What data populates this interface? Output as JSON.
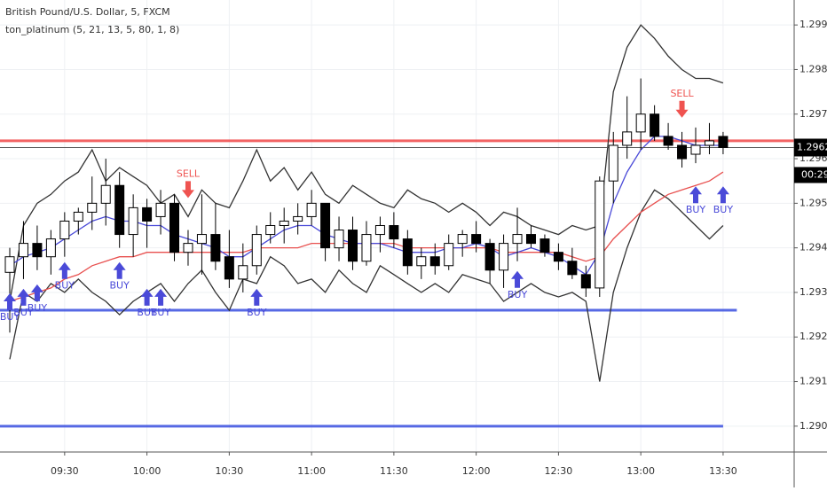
{
  "chart_data": {
    "type": "candlestick",
    "title": "British Pound/U.S. Dollar, 5, FXCM",
    "subtitle": "ton_platinum (5, 21, 13, 5, 80, 1, 8)",
    "categories": [
      null,
      null,
      null,
      null,
      "09:30",
      null,
      null,
      null,
      null,
      null,
      "10:00",
      null,
      null,
      null,
      null,
      null,
      "10:30",
      null,
      null,
      null,
      null,
      null,
      "11:00",
      null,
      null,
      null,
      null,
      null,
      "11:30",
      null,
      null,
      null,
      null,
      null,
      "12:00",
      null,
      null,
      null,
      null,
      null,
      "12:30",
      null,
      null,
      null,
      null,
      null,
      "13:00",
      null,
      null,
      null,
      null,
      null,
      "13:30"
    ],
    "open": [
      1.29345,
      1.2938,
      1.2941,
      1.2938,
      1.2942,
      1.2946,
      1.2948,
      1.295,
      1.2954,
      1.2943,
      1.2949,
      1.2947,
      1.295,
      1.2939,
      1.2941,
      1.2943,
      1.2938,
      1.2933,
      1.2936,
      1.2943,
      1.2945,
      1.2946,
      1.2947,
      1.295,
      1.294,
      1.2944,
      1.2937,
      1.2943,
      1.2945,
      1.2942,
      1.2936,
      1.2938,
      1.2936,
      1.2941,
      1.2943,
      1.2941,
      1.2935,
      1.2941,
      1.2943,
      1.2942,
      1.2939,
      1.2937,
      1.2934,
      1.2931,
      1.2955,
      1.2963,
      1.2966,
      1.297,
      1.2965,
      1.2963,
      1.2961,
      1.2963,
      1.2965
    ],
    "high": [
      1.294,
      1.2946,
      1.2945,
      1.2944,
      1.2948,
      1.2949,
      1.2956,
      1.296,
      1.2957,
      1.2952,
      1.2951,
      1.2953,
      1.2952,
      1.2944,
      1.2952,
      1.295,
      1.2944,
      1.2941,
      1.2945,
      1.2948,
      1.2949,
      1.295,
      1.2953,
      1.295,
      1.2947,
      1.2947,
      1.2946,
      1.2947,
      1.2948,
      1.2944,
      1.294,
      1.2941,
      1.2943,
      1.2944,
      1.2946,
      1.2942,
      1.2943,
      1.2949,
      1.2945,
      1.2943,
      1.2941,
      1.294,
      1.2936,
      1.2956,
      1.2966,
      1.2974,
      1.2978,
      1.2972,
      1.2968,
      1.2966,
      1.2967,
      1.2968,
      1.2966
    ],
    "low": [
      1.2921,
      1.2933,
      1.2935,
      1.2934,
      1.2938,
      1.2943,
      1.2944,
      1.2945,
      1.294,
      1.2938,
      1.294,
      1.2943,
      1.2937,
      1.2936,
      1.2934,
      1.2935,
      1.2931,
      1.293,
      1.2934,
      1.2941,
      1.2941,
      1.2943,
      1.2945,
      1.2937,
      1.2937,
      1.2935,
      1.2936,
      1.2939,
      1.294,
      1.2934,
      1.2933,
      1.2934,
      1.2935,
      1.2938,
      1.2939,
      1.2932,
      1.2931,
      1.2937,
      1.294,
      1.2938,
      1.2935,
      1.2933,
      1.2929,
      1.2929,
      1.295,
      1.296,
      1.2962,
      1.2964,
      1.2962,
      1.2958,
      1.2959,
      1.2961,
      1.2961
    ],
    "close": [
      1.2938,
      1.2941,
      1.2938,
      1.2942,
      1.2946,
      1.2948,
      1.295,
      1.2954,
      1.2943,
      1.2949,
      1.2946,
      1.295,
      1.2939,
      1.2941,
      1.2943,
      1.2937,
      1.2933,
      1.2936,
      1.2943,
      1.2945,
      1.2946,
      1.2947,
      1.295,
      1.294,
      1.2944,
      1.2937,
      1.2943,
      1.2945,
      1.2942,
      1.2936,
      1.2938,
      1.2936,
      1.2941,
      1.2943,
      1.2941,
      1.2935,
      1.2941,
      1.2943,
      1.2941,
      1.2939,
      1.2937,
      1.2934,
      1.2931,
      1.2955,
      1.2963,
      1.2966,
      1.297,
      1.2965,
      1.2963,
      1.296,
      1.2963,
      1.2964,
      1.29625
    ],
    "series": [
      {
        "color": "#333333",
        "values": [
          1.2928,
          1.2945,
          1.295,
          1.2952,
          1.2955,
          1.2957,
          1.2962,
          1.2955,
          1.2958,
          1.2956,
          1.2954,
          1.295,
          1.2952,
          1.2947,
          1.2953,
          1.295,
          1.2949,
          1.2955,
          1.2962,
          1.2955,
          1.2958,
          1.2953,
          1.2957,
          1.2952,
          1.295,
          1.2954,
          1.2952,
          1.295,
          1.2949,
          1.2953,
          1.2951,
          1.295,
          1.2948,
          1.295,
          1.2948,
          1.2945,
          1.2948,
          1.2947,
          1.2945,
          1.2944,
          1.2943,
          1.2945,
          1.2944,
          1.2945,
          1.2975,
          1.2985,
          1.299,
          1.2987,
          1.2983,
          1.298,
          1.2978,
          1.2978,
          1.2977
        ]
      },
      {
        "color": "#333333",
        "values": [
          1.2915,
          1.293,
          1.2928,
          1.2932,
          1.293,
          1.2933,
          1.293,
          1.2928,
          1.2925,
          1.2928,
          1.293,
          1.2932,
          1.2928,
          1.2932,
          1.2935,
          1.293,
          1.2926,
          1.2933,
          1.2932,
          1.2938,
          1.2936,
          1.2932,
          1.2933,
          1.293,
          1.2935,
          1.2932,
          1.293,
          1.2936,
          1.2934,
          1.2932,
          1.293,
          1.2932,
          1.293,
          1.2934,
          1.2933,
          1.2932,
          1.2928,
          1.293,
          1.2932,
          1.293,
          1.2929,
          1.293,
          1.2928,
          1.291,
          1.293,
          1.294,
          1.2948,
          1.2953,
          1.2951,
          1.2948,
          1.2945,
          1.2942,
          1.2945
        ]
      },
      {
        "color": "#e8504f",
        "values": [
          1.2928,
          1.2929,
          1.293,
          1.2931,
          1.2933,
          1.2934,
          1.2936,
          1.2937,
          1.2938,
          1.2938,
          1.2939,
          1.2939,
          1.2939,
          1.2939,
          1.2939,
          1.2939,
          1.2939,
          1.2939,
          1.294,
          1.294,
          1.294,
          1.294,
          1.2941,
          1.2941,
          1.2941,
          1.2941,
          1.2941,
          1.2941,
          1.2941,
          1.294,
          1.294,
          1.294,
          1.294,
          1.294,
          1.294,
          1.294,
          1.2939,
          1.2939,
          1.2939,
          1.2939,
          1.2939,
          1.2938,
          1.2937,
          1.2938,
          1.2942,
          1.2945,
          1.2948,
          1.295,
          1.2952,
          1.2953,
          1.2954,
          1.2955,
          1.2957
        ]
      },
      {
        "color": "#4a4ad8",
        "values": [
          1.2936,
          1.2938,
          1.2939,
          1.294,
          1.2942,
          1.2944,
          1.2946,
          1.2947,
          1.2946,
          1.2946,
          1.2945,
          1.2945,
          1.2943,
          1.2942,
          1.2941,
          1.294,
          1.2938,
          1.2938,
          1.294,
          1.2942,
          1.2944,
          1.2945,
          1.2945,
          1.2943,
          1.2942,
          1.2941,
          1.2941,
          1.2941,
          1.294,
          1.2939,
          1.2939,
          1.2939,
          1.294,
          1.294,
          1.2941,
          1.294,
          1.2938,
          1.2939,
          1.294,
          1.2939,
          1.2938,
          1.2936,
          1.2934,
          1.2939,
          1.295,
          1.2957,
          1.2962,
          1.2965,
          1.2965,
          1.2964,
          1.2963,
          1.2963,
          1.2963
        ]
      }
    ],
    "signals": [
      {
        "label": "SELL",
        "index": 13,
        "value": 1.2951,
        "color": "#ef5350"
      },
      {
        "label": "SELL",
        "index": 49,
        "value": 1.2969,
        "color": "#ef5350"
      },
      {
        "label": "BUY",
        "index": 0,
        "value": 1.293,
        "color": "#4a4ad8"
      },
      {
        "label": "BUY",
        "index": 1,
        "value": 1.2931,
        "color": "#4a4ad8"
      },
      {
        "label": "BUY",
        "index": 2,
        "value": 1.2932,
        "color": "#4a4ad8"
      },
      {
        "label": "BUY",
        "index": 4,
        "value": 1.2937,
        "color": "#4a4ad8"
      },
      {
        "label": "BUY",
        "index": 8,
        "value": 1.2937,
        "color": "#4a4ad8"
      },
      {
        "label": "BUY",
        "index": 10,
        "value": 1.2931,
        "color": "#4a4ad8"
      },
      {
        "label": "BUY",
        "index": 11,
        "value": 1.2931,
        "color": "#4a4ad8"
      },
      {
        "label": "BUY",
        "index": 18,
        "value": 1.2931,
        "color": "#4a4ad8"
      },
      {
        "label": "BUY",
        "index": 37,
        "value": 1.2935,
        "color": "#4a4ad8"
      },
      {
        "label": "BUY",
        "index": 50,
        "value": 1.2954,
        "color": "#4a4ad8"
      },
      {
        "label": "BUY",
        "index": 52,
        "value": 1.2954,
        "color": "#4a4ad8"
      }
    ],
    "hlines": [
      {
        "value": 1.2964,
        "color": "#f04848"
      },
      {
        "value": 1.2926,
        "color": "#3a4fe0",
        "end": 53
      },
      {
        "value": 1.29,
        "color": "#3a4fe0",
        "end": 52
      }
    ],
    "last_price": 1.29625,
    "countdown": "00:29",
    "ylim": [
      1.28942,
      1.29956
    ],
    "yticks": [
      {
        "value": 1.29,
        "label": "1.29000"
      },
      {
        "value": 1.291,
        "label": "1.29100"
      },
      {
        "value": 1.292,
        "label": "1.29200"
      },
      {
        "value": 1.293,
        "label": "1.29300"
      },
      {
        "value": 1.294,
        "label": "1.29400"
      },
      {
        "value": 1.295,
        "label": "1.29500"
      },
      {
        "value": 1.296,
        "label": "1.29600"
      },
      {
        "value": 1.297,
        "label": "1.29700"
      },
      {
        "value": 1.298,
        "label": "1.29800"
      },
      {
        "value": 1.299,
        "label": "1.29900"
      }
    ],
    "grid": true,
    "up_color": "#ffffff",
    "down_color": "#000000"
  }
}
